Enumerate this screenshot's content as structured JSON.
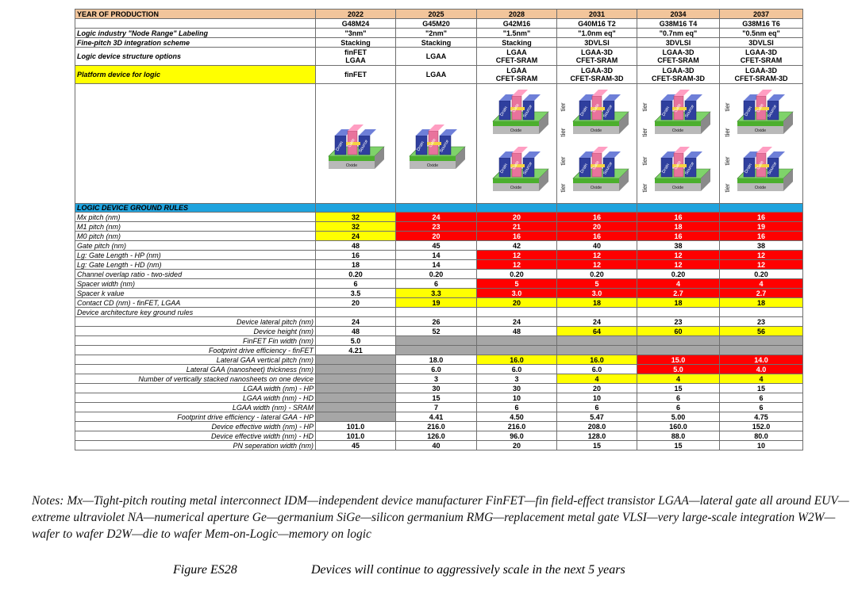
{
  "header": {
    "label": "YEAR OF PRODUCTION",
    "years": [
      "2022",
      "2025",
      "2028",
      "2031",
      "2034",
      "2037"
    ]
  },
  "node_codes": [
    "G48M24",
    "G45M20",
    "G42M16",
    "G40M16 T2",
    "G38M16 T4",
    "G38M16 T6"
  ],
  "node_range": {
    "label": "Logic industry \"Node Range\" Labeling",
    "values": [
      "\"3nm\"",
      "\"2nm\"",
      "\"1.5nm\"",
      "\"1.0nm eq\"",
      "\"0.7nm eq\"",
      "\"0.5nm eq\""
    ]
  },
  "integration": {
    "label": "Fine-pitch 3D integration scheme",
    "values": [
      "Stacking",
      "Stacking",
      "Stacking",
      "3DVLSI",
      "3DVLSI",
      "3DVLSI"
    ]
  },
  "structure": {
    "label": "Logic device structure options",
    "values": [
      [
        "finFET",
        "LGAA"
      ],
      [
        "LGAA",
        ""
      ],
      [
        "LGAA",
        "CFET-SRAM"
      ],
      [
        "LGAA-3D",
        "CFET-SRAM"
      ],
      [
        "LGAA-3D",
        "CFET-SRAM"
      ],
      [
        "LGAA-3D",
        "CFET-SRAM"
      ]
    ]
  },
  "platform": {
    "label": "Platform device for logic",
    "values": [
      [
        "finFET",
        ""
      ],
      [
        "LGAA",
        ""
      ],
      [
        "LGAA",
        "CFET-SRAM"
      ],
      [
        "LGAA-3D",
        "CFET-SRAM-3D"
      ],
      [
        "LGAA-3D",
        "CFET-SRAM-3D"
      ],
      [
        "LGAA-3D",
        "CFET-SRAM-3D"
      ]
    ]
  },
  "diagram": {
    "drain": "Drain",
    "gate": "Gate",
    "source": "Source",
    "oxide": "Oxide",
    "tier": "tier"
  },
  "ground_rules_title": "LOGIC DEVICE GROUND RULES",
  "rules": [
    {
      "label": "Mx pitch (nm)",
      "values": [
        "32",
        "24",
        "20",
        "16",
        "16",
        "16"
      ]
    },
    {
      "label": "M1 pitch (nm)",
      "values": [
        "32",
        "23",
        "21",
        "20",
        "18",
        "19"
      ]
    },
    {
      "label": "M0 pitch (nm)",
      "values": [
        "24",
        "20",
        "16",
        "16",
        "16",
        "16"
      ]
    },
    {
      "label": "Gate pitch (nm)",
      "values": [
        "48",
        "45",
        "42",
        "40",
        "38",
        "38"
      ]
    },
    {
      "label": "Lg: Gate Length - HP (nm)",
      "values": [
        "16",
        "14",
        "12",
        "12",
        "12",
        "12"
      ]
    },
    {
      "label": "Lg: Gate Length - HD (nm)",
      "values": [
        "18",
        "14",
        "12",
        "12",
        "12",
        "12"
      ]
    },
    {
      "label": "Channel overlap ratio - two-sided",
      "values": [
        "0.20",
        "0.20",
        "0.20",
        "0.20",
        "0.20",
        "0.20"
      ]
    },
    {
      "label": "Spacer width (nm)",
      "values": [
        "6",
        "6",
        "5",
        "5",
        "4",
        "4"
      ]
    },
    {
      "label": "Spacer k value",
      "values": [
        "3.5",
        "3.3",
        "3.0",
        "3.0",
        "2.7",
        "2.7"
      ]
    },
    {
      "label": "Contact CD (nm) - finFET, LGAA",
      "values": [
        "20",
        "19",
        "20",
        "18",
        "18",
        "18"
      ]
    }
  ],
  "arch_label": "Device architecture key ground rules",
  "arch_rules": [
    {
      "label": "Device lateral pitch (nm)",
      "values": [
        "24",
        "26",
        "24",
        "24",
        "23",
        "23"
      ]
    },
    {
      "label": "Device height (nm)",
      "values": [
        "48",
        "52",
        "48",
        "64",
        "60",
        "56"
      ]
    },
    {
      "label": "FinFET Fin width (nm)",
      "values": [
        "5.0",
        "",
        "",
        "",
        "",
        ""
      ]
    },
    {
      "label": "Footprint drive efficiency - finFET",
      "values": [
        "4.21",
        "",
        "",
        "",
        "",
        ""
      ]
    },
    {
      "label": "Lateral GAA vertical pitch (nm)",
      "values": [
        "",
        "18.0",
        "16.0",
        "16.0",
        "15.0",
        "14.0"
      ]
    },
    {
      "label": "Lateral GAA (nanosheet) thickness (nm)",
      "values": [
        "",
        "6.0",
        "6.0",
        "6.0",
        "5.0",
        "4.0"
      ]
    },
    {
      "label": "Number of vertically stacked nanosheets on one device",
      "values": [
        "",
        "3",
        "3",
        "4",
        "4",
        "4"
      ]
    },
    {
      "label": "LGAA width (nm) - HP",
      "values": [
        "",
        "30",
        "30",
        "20",
        "15",
        "15"
      ]
    },
    {
      "label": "LGAA width (nm) - HD",
      "values": [
        "",
        "15",
        "10",
        "10",
        "6",
        "6"
      ]
    },
    {
      "label": "LGAA width (nm) - SRAM",
      "values": [
        "",
        "7",
        "6",
        "6",
        "6",
        "6"
      ]
    },
    {
      "label": "Footprint drive efficiency - lateral GAA - HP",
      "values": [
        "",
        "4.41",
        "4.50",
        "5.47",
        "5.00",
        "4.75"
      ]
    },
    {
      "label": "Device effective width (nm) - HP",
      "values": [
        "101.0",
        "216.0",
        "216.0",
        "208.0",
        "160.0",
        "152.0"
      ]
    },
    {
      "label": "Device effective width (nm) - HD",
      "values": [
        "101.0",
        "126.0",
        "96.0",
        "128.0",
        "88.0",
        "80.0"
      ]
    },
    {
      "label": "PN seperation width (nm)",
      "values": [
        "45",
        "40",
        "20",
        "15",
        "15",
        "10"
      ]
    }
  ],
  "colors": {
    "yellow": "#ffff00",
    "red": "#ff0000",
    "gray": "#a6a6a6",
    "header": "#f2c59b",
    "section": "#1fa3de"
  },
  "notes": "Notes: Mx—Tight-pitch routing metal interconnect   IDM—independent device manufacturer   FinFET—fin field-effect transistor   LGAA—lateral gate all around   EUV—extreme ultraviolet   NA—numerical aperture   Ge—germanium   SiGe—silicon germanium   RMG—replacement metal gate   VLSI—very large-scale integration   W2W—wafer to wafer   D2W—die to wafer   Mem-on-Logic—memory on logic",
  "figure_label": "Figure ES28",
  "figure_caption": "Devices will continue to aggressively scale in the next 5 years"
}
